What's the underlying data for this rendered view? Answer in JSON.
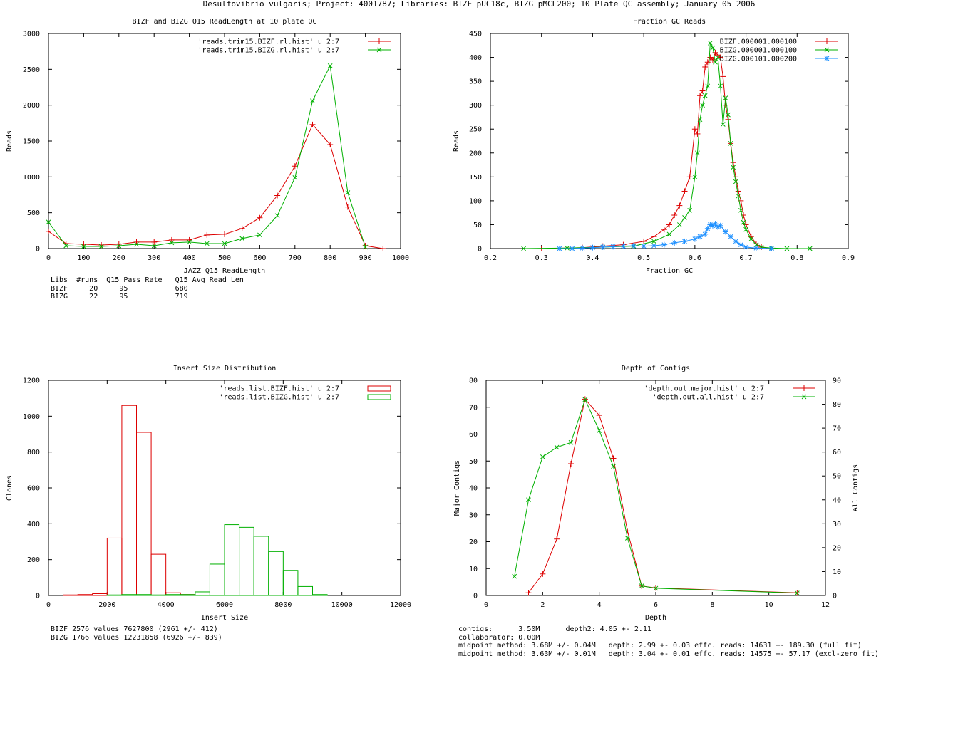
{
  "page": {
    "title": "Desulfovibrio vulgaris; Project: 4001787; Libraries: BIZF pUC18c, BIZG pMCL200; 10 Plate QC assembly; January 05 2006"
  },
  "colors": {
    "red": "#dd0000",
    "green": "#00b000",
    "blue": "#1e90ff",
    "axis": "#000000"
  },
  "chart_data": [
    {
      "id": "readlength",
      "type": "line",
      "title": "BIZF and BIZG Q15 ReadLength at 10 plate QC",
      "xlabel": "JAZZ Q15 ReadLength",
      "ylabel": "Reads",
      "xlim": [
        0,
        1000
      ],
      "ylim": [
        0,
        3000
      ],
      "xticks": [
        0,
        100,
        200,
        300,
        400,
        500,
        600,
        700,
        800,
        900,
        1000
      ],
      "yticks": [
        0,
        500,
        1000,
        1500,
        2000,
        2500,
        3000
      ],
      "series": [
        {
          "name": "'reads.trim15.BIZF.rl.hist' u 2:7",
          "color": "#dd0000",
          "marker": "plus",
          "x": [
            0,
            50,
            100,
            150,
            200,
            250,
            300,
            350,
            400,
            450,
            500,
            550,
            600,
            650,
            700,
            750,
            800,
            850,
            900,
            950
          ],
          "y": [
            240,
            70,
            60,
            50,
            60,
            90,
            90,
            120,
            120,
            190,
            200,
            280,
            430,
            740,
            1150,
            1730,
            1450,
            580,
            40,
            0
          ]
        },
        {
          "name": "'reads.trim15.BIZG.rl.hist' u 2:7",
          "color": "#00b000",
          "marker": "x",
          "x": [
            0,
            50,
            100,
            150,
            200,
            250,
            300,
            350,
            400,
            450,
            500,
            550,
            600,
            650,
            700,
            750,
            800,
            850,
            900
          ],
          "y": [
            370,
            40,
            30,
            30,
            40,
            60,
            40,
            80,
            90,
            70,
            70,
            140,
            190,
            460,
            990,
            2060,
            2550,
            780,
            20
          ]
        }
      ],
      "legend": "top-right",
      "stats_table": {
        "header": [
          "Libs",
          "#runs",
          "Q15 Pass Rate",
          "Q15 Avg Read Len"
        ],
        "rows": [
          [
            "BIZF",
            "20",
            "95",
            "680"
          ],
          [
            "BIZG",
            "22",
            "95",
            "719"
          ]
        ]
      }
    },
    {
      "id": "gc",
      "type": "line",
      "title": "Fraction GC Reads",
      "xlabel": "Fraction GC",
      "ylabel": "Reads",
      "xlim": [
        0.2,
        0.9
      ],
      "ylim": [
        0,
        450
      ],
      "xticks": [
        0.2,
        0.3,
        0.4,
        0.5,
        0.6,
        0.7,
        0.8,
        0.9
      ],
      "yticks": [
        0,
        50,
        100,
        150,
        200,
        250,
        300,
        350,
        400,
        450
      ],
      "series": [
        {
          "name": "BIZF.000001.000100",
          "color": "#dd0000",
          "marker": "plus",
          "x": [
            0.3,
            0.38,
            0.42,
            0.46,
            0.5,
            0.52,
            0.54,
            0.55,
            0.56,
            0.57,
            0.58,
            0.59,
            0.6,
            0.605,
            0.61,
            0.615,
            0.62,
            0.625,
            0.63,
            0.635,
            0.64,
            0.645,
            0.65,
            0.655,
            0.66,
            0.665,
            0.67,
            0.675,
            0.68,
            0.685,
            0.69,
            0.695,
            0.7,
            0.71,
            0.72,
            0.73,
            0.75
          ],
          "y": [
            0,
            2,
            5,
            8,
            15,
            25,
            40,
            50,
            70,
            90,
            120,
            150,
            250,
            240,
            320,
            330,
            380,
            390,
            400,
            395,
            410,
            405,
            400,
            360,
            300,
            270,
            220,
            180,
            150,
            120,
            100,
            70,
            50,
            25,
            10,
            3,
            0
          ]
        },
        {
          "name": "BIZG.000001.000100",
          "color": "#00b000",
          "marker": "x",
          "x": [
            0.265,
            0.35,
            0.42,
            0.48,
            0.52,
            0.55,
            0.57,
            0.58,
            0.59,
            0.6,
            0.605,
            0.61,
            0.615,
            0.62,
            0.625,
            0.63,
            0.635,
            0.64,
            0.645,
            0.65,
            0.655,
            0.66,
            0.665,
            0.67,
            0.675,
            0.68,
            0.685,
            0.69,
            0.695,
            0.7,
            0.71,
            0.72,
            0.73,
            0.75,
            0.78,
            0.825
          ],
          "y": [
            0,
            1,
            3,
            5,
            15,
            30,
            50,
            65,
            80,
            150,
            200,
            270,
            300,
            320,
            340,
            430,
            420,
            390,
            400,
            340,
            260,
            315,
            280,
            220,
            170,
            140,
            110,
            80,
            55,
            40,
            20,
            8,
            3,
            1,
            0,
            0
          ]
        },
        {
          "name": "BIZG.000101.000200",
          "color": "#1e90ff",
          "marker": "star",
          "x": [
            0.335,
            0.36,
            0.38,
            0.4,
            0.42,
            0.44,
            0.46,
            0.48,
            0.5,
            0.52,
            0.54,
            0.56,
            0.58,
            0.6,
            0.61,
            0.62,
            0.625,
            0.63,
            0.635,
            0.64,
            0.645,
            0.65,
            0.66,
            0.67,
            0.68,
            0.69,
            0.7,
            0.72,
            0.75
          ],
          "y": [
            0,
            0,
            1,
            2,
            3,
            4,
            5,
            6,
            5,
            6,
            8,
            12,
            15,
            20,
            25,
            30,
            42,
            50,
            48,
            52,
            45,
            48,
            35,
            25,
            15,
            8,
            3,
            1,
            0
          ]
        }
      ],
      "legend": "top-right"
    },
    {
      "id": "insert",
      "type": "bar",
      "title": "Insert Size Distribution",
      "xlabel": "Insert Size",
      "ylabel": "Clones",
      "xlim": [
        0,
        12000
      ],
      "ylim": [
        0,
        1200
      ],
      "xticks": [
        0,
        2000,
        4000,
        6000,
        8000,
        10000,
        12000
      ],
      "yticks": [
        0,
        200,
        400,
        600,
        800,
        1000,
        1200
      ],
      "bin_width": 500,
      "series": [
        {
          "name": "'reads.list.BIZF.hist' u 2:7",
          "color": "#dd0000",
          "bin_starts": [
            500,
            1000,
            1500,
            2000,
            2500,
            3000,
            3500,
            4000,
            4500,
            5000,
            5500
          ],
          "counts": [
            3,
            5,
            10,
            320,
            1060,
            910,
            230,
            15,
            5,
            2,
            0
          ]
        },
        {
          "name": "'reads.list.BIZG.hist' u 2:7",
          "color": "#00b000",
          "bin_starts": [
            2000,
            2500,
            3000,
            3500,
            4000,
            4500,
            5000,
            5500,
            6000,
            6500,
            7000,
            7500,
            8000,
            8500,
            9000
          ],
          "counts": [
            3,
            5,
            5,
            3,
            5,
            5,
            20,
            175,
            395,
            380,
            330,
            245,
            140,
            50,
            5
          ]
        }
      ],
      "legend": "top-right",
      "summary": [
        "BIZF 2576 values 7627800 (2961 +/- 412)",
        "BIZG 1766 values 12231858 (6926 +/- 839)"
      ]
    },
    {
      "id": "depth",
      "type": "line",
      "title": "Depth of Contigs",
      "xlabel": "Depth",
      "ylabel": "Major Contigs",
      "y2label": "All Contigs",
      "xlim": [
        0,
        12
      ],
      "ylim": [
        0,
        80
      ],
      "y2lim": [
        0,
        90
      ],
      "xticks": [
        0,
        2,
        4,
        6,
        8,
        10,
        12
      ],
      "yticks": [
        0,
        10,
        20,
        30,
        40,
        50,
        60,
        70,
        80
      ],
      "y2ticks": [
        0,
        10,
        20,
        30,
        40,
        50,
        60,
        70,
        80,
        90
      ],
      "series": [
        {
          "name": "'depth.out.major.hist' u 2:7",
          "color": "#dd0000",
          "marker": "plus",
          "axis": "y",
          "x": [
            1.5,
            2,
            2.5,
            3,
            3.5,
            4,
            4.5,
            5,
            5.5,
            6,
            11
          ],
          "y": [
            1,
            8,
            21,
            49,
            73,
            67,
            51,
            24,
            3.5,
            2.8,
            1
          ]
        },
        {
          "name": "'depth.out.all.hist' u 2:7",
          "color": "#00b000",
          "marker": "x",
          "axis": "y2",
          "x": [
            1,
            1.5,
            2,
            2.5,
            3,
            3.5,
            4,
            4.5,
            5,
            5.5,
            6,
            11
          ],
          "y": [
            8,
            40,
            58,
            62,
            64,
            82,
            69,
            54,
            24,
            4,
            3,
            1
          ]
        }
      ],
      "legend": "top-right",
      "summary": [
        "contigs:      3.50M      depth2: 4.05 +- 2.11",
        "collaborator: 0.00M",
        "midpoint method: 3.68M +/- 0.04M   depth: 2.99 +- 0.03 effc. reads: 14631 +- 189.30 (full fit)",
        "midpoint method: 3.63M +/- 0.01M   depth: 3.04 +- 0.01 effc. reads: 14575 +- 57.17 (excl-zero fit)"
      ]
    }
  ]
}
